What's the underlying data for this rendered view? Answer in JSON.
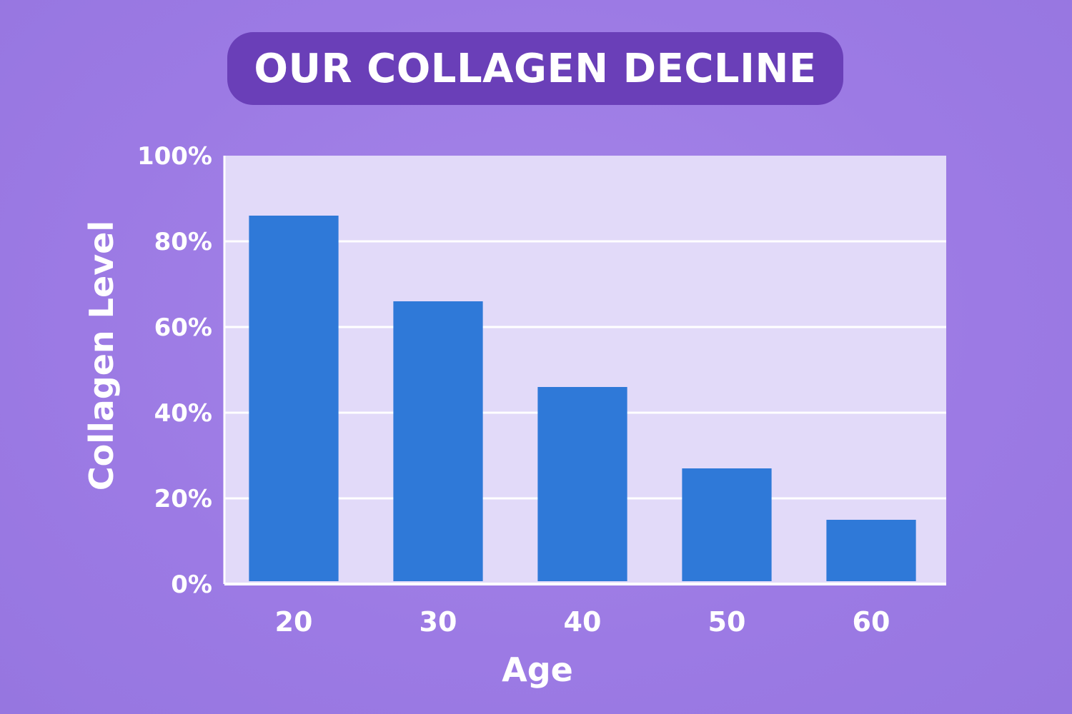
{
  "chart_data": {
    "type": "bar",
    "title": "OUR COLLAGEN DECLINE",
    "xlabel": "Age",
    "ylabel": "Collagen Level",
    "categories": [
      "20",
      "30",
      "40",
      "50",
      "60"
    ],
    "values": [
      86,
      66,
      46,
      27,
      15
    ],
    "ylim": [
      0,
      100
    ],
    "yticks": [
      0,
      20,
      40,
      60,
      80,
      100
    ],
    "ytick_labels": [
      "0%",
      "20%",
      "40%",
      "60%",
      "80%",
      "100%"
    ],
    "grid": true,
    "legend": "none",
    "colors": {
      "bar": "#2f79d8",
      "plot_background": "#e2daf9",
      "title_background": "#6a3fb8",
      "page_background": "#9f7fe5"
    }
  }
}
